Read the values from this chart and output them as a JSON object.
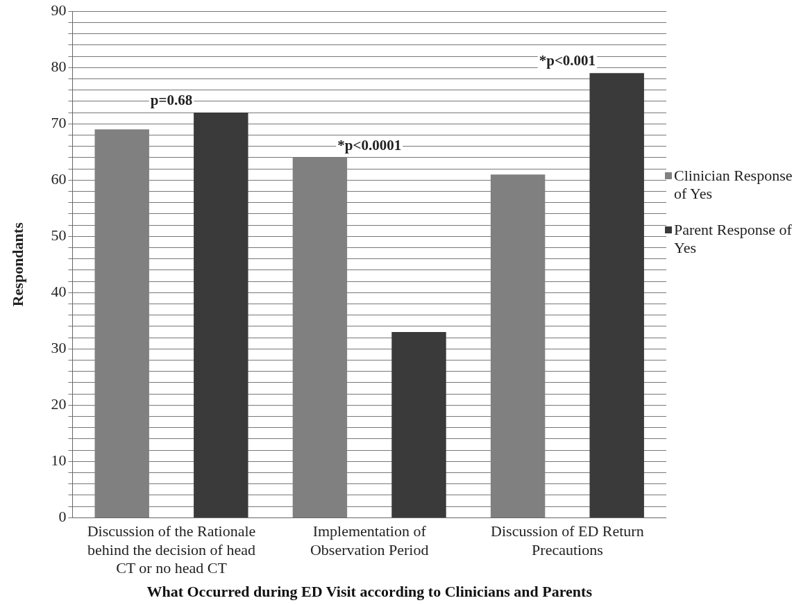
{
  "chart_data": {
    "type": "bar",
    "xlabel": "What Occurred during ED Visit according to Clinicians and Parents",
    "ylabel": "Respondants",
    "categories": [
      "Discussion of the Rationale behind the decision of head CT or no head CT",
      "Implementation of Observation Period",
      "Discussion of ED Return Precautions"
    ],
    "series": [
      {
        "name": "Clinician Response of Yes",
        "color": "#808080",
        "values": [
          69,
          64,
          61
        ]
      },
      {
        "name": "Parent Response of Yes",
        "color": "#3a3a3a",
        "values": [
          72,
          33,
          79
        ]
      }
    ],
    "ylim": [
      0,
      90
    ],
    "yticks": [
      0,
      {
        "value": 2,
        "label": null
      },
      {
        "value": 4,
        "label": null
      },
      {
        "value": 6,
        "label": null
      },
      {
        "value": 8,
        "label": null
      },
      10,
      {
        "value": 12,
        "label": null
      },
      {
        "value": 14,
        "label": null
      },
      {
        "value": 16,
        "label": null
      },
      {
        "value": 18,
        "label": null
      },
      20,
      {
        "value": 22,
        "label": null
      },
      {
        "value": 24,
        "label": null
      },
      {
        "value": 26,
        "label": null
      },
      {
        "value": 28,
        "label": null
      },
      30,
      {
        "value": 32,
        "label": null
      },
      {
        "value": 34,
        "label": null
      },
      {
        "value": 36,
        "label": null
      },
      {
        "value": 38,
        "label": null
      },
      40,
      {
        "value": 42,
        "label": null
      },
      {
        "value": 44,
        "label": null
      },
      {
        "value": 46,
        "label": null
      },
      {
        "value": 48,
        "label": null
      },
      50,
      {
        "value": 52,
        "label": null
      },
      {
        "value": 54,
        "label": null
      },
      {
        "value": 56,
        "label": null
      },
      {
        "value": 58,
        "label": null
      },
      60,
      {
        "value": 62,
        "label": null
      },
      {
        "value": 64,
        "label": null
      },
      {
        "value": 66,
        "label": null
      },
      {
        "value": 68,
        "label": null
      },
      70,
      {
        "value": 72,
        "label": null
      },
      {
        "value": 74,
        "label": null
      },
      {
        "value": 76,
        "label": null
      },
      {
        "value": 78,
        "label": null
      },
      80,
      {
        "value": 82,
        "label": null
      },
      {
        "value": 84,
        "label": null
      },
      {
        "value": 86,
        "label": null
      },
      {
        "value": 88,
        "label": null
      },
      90
    ],
    "annotations": [
      "p=0.68",
      "*p<0.0001",
      "*p<0.001"
    ],
    "grid": "y",
    "legend": "right"
  }
}
